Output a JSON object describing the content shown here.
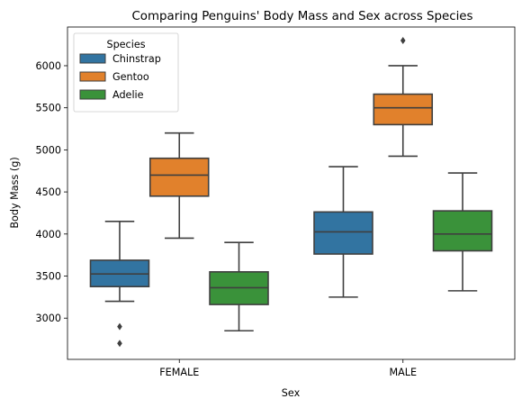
{
  "chart_data": {
    "type": "boxplot",
    "title": "Comparing Penguins' Body Mass and Sex across Species",
    "xlabel": "Sex",
    "ylabel": "Body Mass (g)",
    "categories": [
      "FEMALE",
      "MALE"
    ],
    "ylim": [
      2510,
      6460
    ],
    "yticks": [
      3000,
      3500,
      4000,
      4500,
      5000,
      5500,
      6000
    ],
    "legend": {
      "title": "Species",
      "placement": "top-left"
    },
    "series": [
      {
        "name": "Chinstrap",
        "color": "#3274a1",
        "boxes": [
          {
            "category": "FEMALE",
            "whislo": 3200,
            "q1": 3375,
            "med": 3525,
            "q3": 3688,
            "whishi": 4150,
            "fliers": [
              2900,
              2700
            ]
          },
          {
            "category": "MALE",
            "whislo": 3250,
            "q1": 3762,
            "med": 4025,
            "q3": 4262,
            "whishi": 4800,
            "fliers": []
          }
        ]
      },
      {
        "name": "Gentoo",
        "color": "#e1812c",
        "boxes": [
          {
            "category": "FEMALE",
            "whislo": 3950,
            "q1": 4450,
            "med": 4700,
            "q3": 4900,
            "whishi": 5200,
            "fliers": []
          },
          {
            "category": "MALE",
            "whislo": 4925,
            "q1": 5300,
            "med": 5500,
            "q3": 5662,
            "whishi": 6000,
            "fliers": [
              6300
            ]
          }
        ]
      },
      {
        "name": "Adelie",
        "color": "#3a923a",
        "boxes": [
          {
            "category": "FEMALE",
            "whislo": 2850,
            "q1": 3162,
            "med": 3362,
            "q3": 3550,
            "whishi": 3900,
            "fliers": []
          },
          {
            "category": "MALE",
            "whislo": 3325,
            "q1": 3800,
            "med": 4000,
            "q3": 4275,
            "whishi": 4725,
            "fliers": []
          }
        ]
      }
    ]
  }
}
